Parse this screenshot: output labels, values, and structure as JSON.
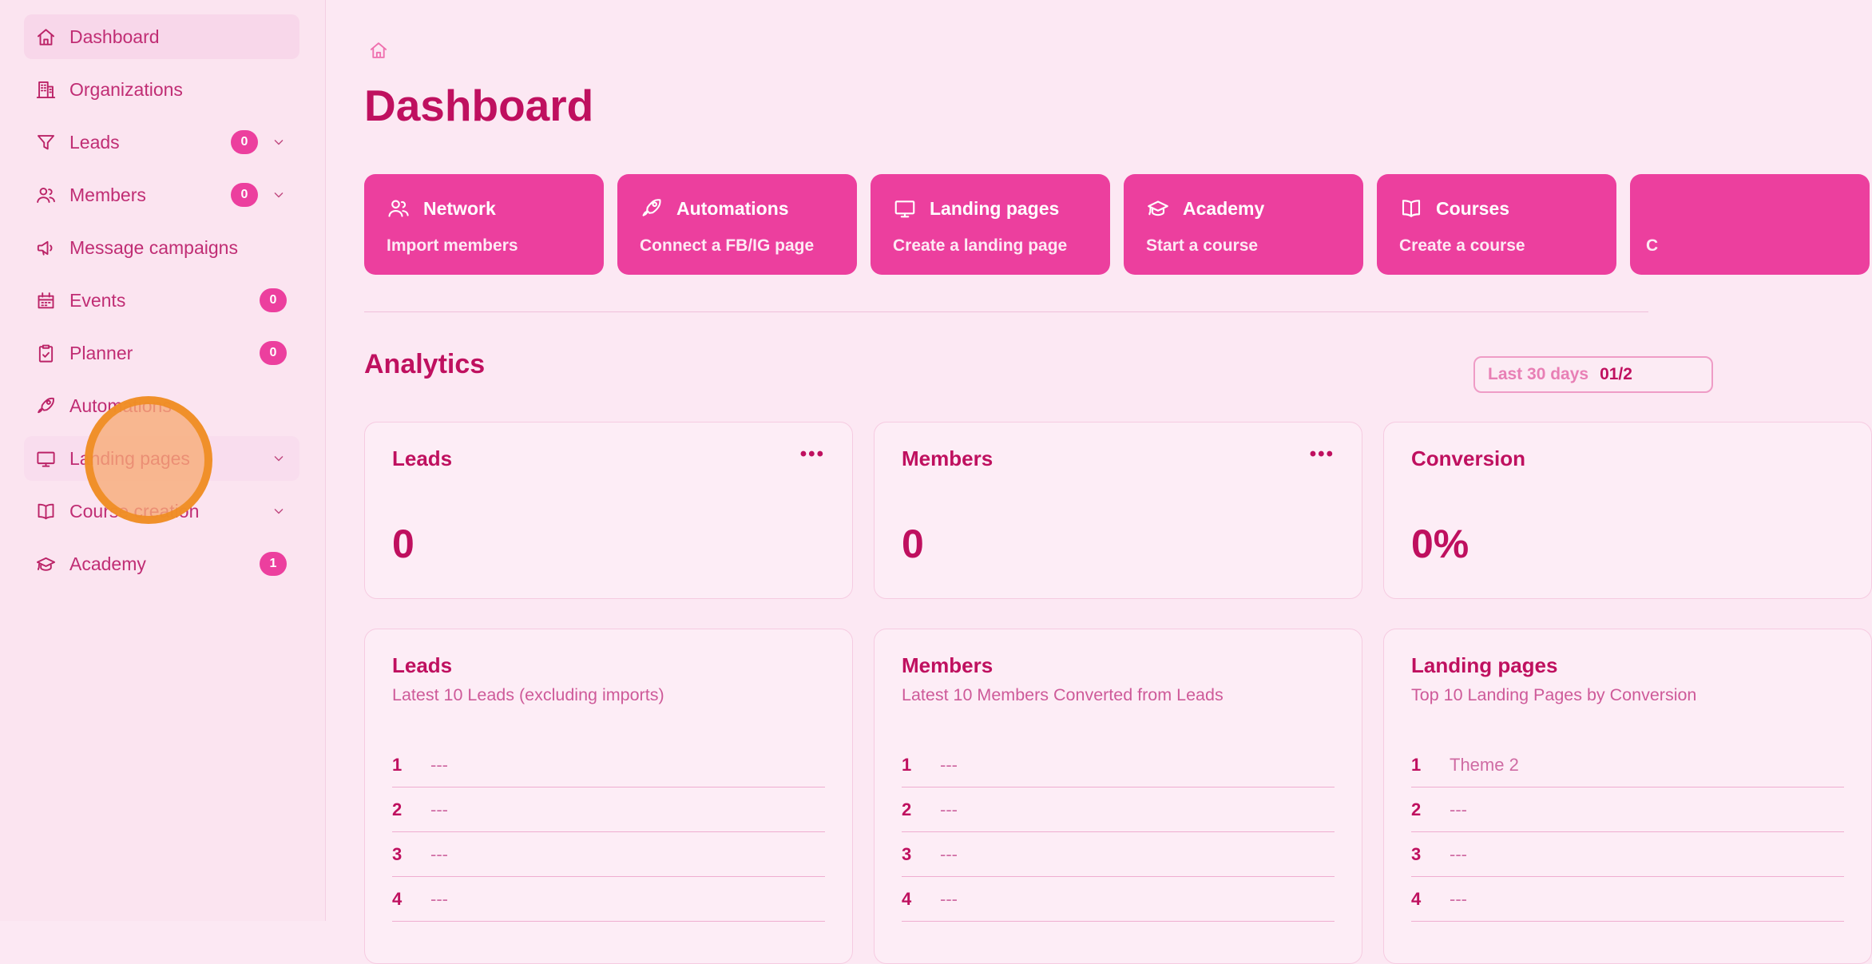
{
  "colors": {
    "accent": "#ec3f9e",
    "deep_text": "#bf105f",
    "sidebar_text": "#c02d74",
    "page_bg": "#fce8f3",
    "card_bg": "#fdedf6",
    "click_indicator": "#f08d22"
  },
  "sidebar": {
    "items": [
      {
        "label": "Dashboard",
        "icon": "home-icon",
        "active": true
      },
      {
        "label": "Organizations",
        "icon": "building-icon"
      },
      {
        "label": "Leads",
        "icon": "funnel-icon",
        "badge": "0",
        "chevron": true
      },
      {
        "label": "Members",
        "icon": "people-icon",
        "badge": "0",
        "chevron": true
      },
      {
        "label": "Message campaigns",
        "icon": "megaphone-icon"
      },
      {
        "label": "Events",
        "icon": "calendar-icon",
        "badge": "0"
      },
      {
        "label": "Planner",
        "icon": "clipboard-icon",
        "badge": "0"
      },
      {
        "label": "Automations",
        "icon": "rocket-icon"
      },
      {
        "label": "Landing pages",
        "icon": "monitor-icon",
        "chevron": true,
        "hovered": true
      },
      {
        "label": "Course creation",
        "icon": "book-icon",
        "chevron": true
      },
      {
        "label": "Academy",
        "icon": "gradcap-icon",
        "badge": "1"
      }
    ]
  },
  "header": {
    "title": "Dashboard",
    "breadcrumb_icon": "home-icon"
  },
  "quick_actions": [
    {
      "title": "Network",
      "subtitle": "Import members",
      "icon": "people-icon"
    },
    {
      "title": "Automations",
      "subtitle": "Connect a FB/IG page",
      "icon": "rocket-icon"
    },
    {
      "title": "Landing pages",
      "subtitle": "Create a landing page",
      "icon": "monitor-icon"
    },
    {
      "title": "Academy",
      "subtitle": "Start a course",
      "icon": "gradcap-icon"
    },
    {
      "title": "Courses",
      "subtitle": "Create a course",
      "icon": "book-icon"
    },
    {
      "title": "",
      "subtitle": "C",
      "icon": "",
      "clipped": true
    }
  ],
  "analytics": {
    "section_title": "Analytics",
    "filter": {
      "range_label": "Last 30 days",
      "date_value": "01/2"
    },
    "stat_cards": [
      {
        "title": "Leads",
        "value": "0",
        "menu": "•••"
      },
      {
        "title": "Members",
        "value": "0",
        "menu": "•••"
      },
      {
        "title": "Conversion",
        "value": "0%",
        "menu": ""
      }
    ],
    "list_cards": [
      {
        "title": "Leads",
        "subtitle": "Latest 10 Leads (excluding imports)",
        "rows": [
          {
            "idx": "1",
            "val": "---"
          },
          {
            "idx": "2",
            "val": "---"
          },
          {
            "idx": "3",
            "val": "---"
          },
          {
            "idx": "4",
            "val": "---"
          }
        ]
      },
      {
        "title": "Members",
        "subtitle": "Latest 10 Members Converted from Leads",
        "rows": [
          {
            "idx": "1",
            "val": "---"
          },
          {
            "idx": "2",
            "val": "---"
          },
          {
            "idx": "3",
            "val": "---"
          },
          {
            "idx": "4",
            "val": "---"
          }
        ]
      },
      {
        "title": "Landing pages",
        "subtitle": "Top 10 Landing Pages by Conversion",
        "rows": [
          {
            "idx": "1",
            "val": "Theme 2"
          },
          {
            "idx": "2",
            "val": "---"
          },
          {
            "idx": "3",
            "val": "---"
          },
          {
            "idx": "4",
            "val": "---"
          }
        ]
      }
    ]
  }
}
